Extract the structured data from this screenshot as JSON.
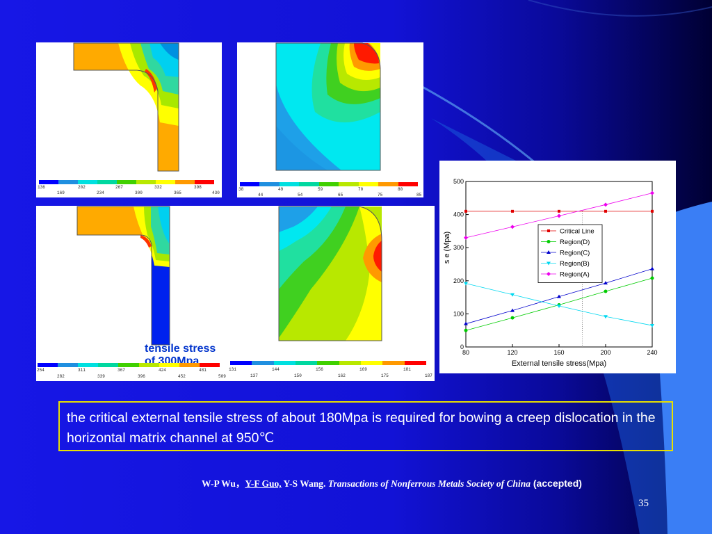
{
  "slide": {
    "caption": "tensile stress of 300Mpa",
    "body_text": "the critical external tensile stress of about 180Mpa is required for bowing a creep dislocation in the horizontal matrix channel at 950℃",
    "citation": {
      "authors_a": "W-P Wu，",
      "author_underlined": "Y-F Guo,",
      "authors_b": " Y-S Wang.",
      "journal": " Transactions of Nonferrous Metals Society of China",
      "status": " (accepted)"
    },
    "page_number": "35"
  },
  "colorbar_colors": [
    "#0000ff",
    "#1f8fe0",
    "#00e0e0",
    "#00d8a0",
    "#40d000",
    "#b8e800",
    "#ffff00",
    "#ff9900",
    "#ff0000"
  ],
  "fem_panels": [
    {
      "ticks_top": [
        "136",
        "202",
        "267",
        "332",
        "398"
      ],
      "ticks_bottom": [
        "169",
        "234",
        "300",
        "365",
        "430"
      ]
    },
    {
      "ticks_top": [
        "38",
        "49",
        "59",
        "70",
        "80"
      ],
      "ticks_bottom": [
        "44",
        "54",
        "65",
        "75",
        "85"
      ]
    },
    {
      "ticks_top": [
        "254",
        "311",
        "367",
        "424",
        "481"
      ],
      "ticks_bottom": [
        "282",
        "339",
        "396",
        "452",
        "509"
      ]
    },
    {
      "ticks_top": [
        "131",
        "144",
        "156",
        "169",
        "181"
      ],
      "ticks_bottom": [
        "137",
        "150",
        "162",
        "175",
        "187"
      ]
    }
  ],
  "chart_data": {
    "type": "line",
    "xlabel": "External tensile stress(Mpa)",
    "ylabel": "s e (Mpa)",
    "xlim": [
      80,
      240
    ],
    "ylim": [
      0,
      500
    ],
    "x_ticks": [
      "80",
      "120",
      "160",
      "200",
      "240"
    ],
    "y_ticks": [
      "0",
      "100",
      "200",
      "300",
      "400",
      "500"
    ],
    "legend_position": "center-right",
    "x": [
      80,
      120,
      160,
      200,
      240
    ],
    "series": [
      {
        "name": "Critical Line",
        "values": [
          410,
          410,
          410,
          410,
          410
        ],
        "color": "#e00000",
        "marker": "square"
      },
      {
        "name": "Region(D)",
        "values": [
          50,
          88,
          127,
          168,
          208
        ],
        "color": "#00cc00",
        "marker": "circle"
      },
      {
        "name": "Region(C)",
        "values": [
          70,
          110,
          152,
          193,
          236
        ],
        "color": "#0000cc",
        "marker": "triangle-up"
      },
      {
        "name": "Region(B)",
        "values": [
          192,
          158,
          124,
          92,
          65
        ],
        "color": "#00d8f0",
        "marker": "triangle-down"
      },
      {
        "name": "Region(A)",
        "values": [
          330,
          363,
          396,
          430,
          465
        ],
        "color": "#ee00ee",
        "marker": "diamond"
      }
    ],
    "annotations": [
      "dotted vertical line at 180"
    ]
  }
}
